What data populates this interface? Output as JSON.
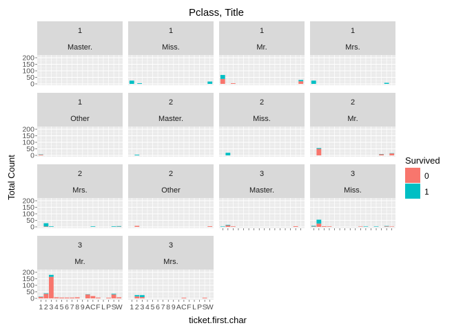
{
  "chart_data": {
    "type": "bar",
    "stacked": true,
    "faceted": true,
    "title": "Pclass, Title",
    "xlabel": "ticket.first.char",
    "ylabel": "Total Count",
    "categories": [
      "1",
      "2",
      "3",
      "4",
      "5",
      "6",
      "7",
      "8",
      "9",
      "A",
      "C",
      "F",
      "L",
      "P",
      "S",
      "W"
    ],
    "x_tick_labels": "123456789ACFLPSW",
    "y_ticks": [
      0,
      50,
      100,
      150,
      200
    ],
    "ylim": [
      0,
      200
    ],
    "legend": {
      "title": "Survived",
      "placement": "right",
      "entries": [
        {
          "label": "0",
          "color": "#F8766D"
        },
        {
          "label": "1",
          "color": "#00BFC4"
        }
      ]
    },
    "series_colors": {
      "0": "#F8766D",
      "1": "#00BFC4"
    },
    "panels": [
      {
        "pclass": "1",
        "title": "Master.",
        "survived_0": [
          0,
          0,
          0,
          0,
          0,
          0,
          0,
          0,
          0,
          0,
          0,
          0,
          0,
          0,
          0,
          0
        ],
        "survived_1": [
          0,
          0,
          0,
          0,
          0,
          0,
          0,
          0,
          0,
          0,
          0,
          0,
          0,
          0,
          0,
          0
        ]
      },
      {
        "pclass": "1",
        "title": "Miss.",
        "survived_0": [
          0,
          0,
          0,
          0,
          0,
          0,
          0,
          0,
          0,
          0,
          0,
          0,
          0,
          0,
          0,
          0
        ],
        "survived_1": [
          25,
          0,
          0,
          0,
          0,
          0,
          0,
          0,
          0,
          0,
          0,
          0,
          0,
          0,
          0,
          0
        ],
        "extra": [
          {
            "idx": 1.5,
            "s0": 0,
            "s1": 5
          },
          {
            "idx": 15,
            "s0": 0,
            "s1": 18
          }
        ]
      },
      {
        "pclass": "1",
        "title": "Mr.",
        "survived_0": [
          38,
          0,
          0,
          0,
          0,
          0,
          0,
          0,
          0,
          0,
          0,
          0,
          0,
          0,
          0,
          0
        ],
        "survived_1": [
          30,
          0,
          0,
          0,
          0,
          0,
          0,
          0,
          0,
          0,
          0,
          0,
          0,
          0,
          0,
          0
        ],
        "extra": [
          {
            "idx": 2,
            "s0": 5,
            "s1": 0
          },
          {
            "idx": 15,
            "s0": 20,
            "s1": 10
          }
        ]
      },
      {
        "pclass": "1",
        "title": "Mrs.",
        "survived_0": [
          0,
          0,
          0,
          0,
          0,
          0,
          0,
          0,
          0,
          0,
          0,
          0,
          0,
          0,
          0,
          0
        ],
        "survived_1": [
          25,
          0,
          0,
          0,
          0,
          0,
          0,
          0,
          0,
          0,
          0,
          0,
          0,
          0,
          0,
          0
        ],
        "extra": [
          {
            "idx": 14,
            "s0": 0,
            "s1": 8
          }
        ]
      },
      {
        "pclass": "1",
        "title": "Other",
        "survived_0": [
          5,
          0,
          0,
          0,
          0,
          0,
          0,
          0,
          0,
          0,
          0,
          0,
          0,
          0,
          0,
          0
        ],
        "survived_1": [
          2,
          0,
          0,
          0,
          0,
          0,
          0,
          0,
          0,
          0,
          0,
          0,
          0,
          0,
          0,
          0
        ]
      },
      {
        "pclass": "2",
        "title": "Master.",
        "survived_0": [
          0,
          0,
          0,
          0,
          0,
          0,
          0,
          0,
          0,
          0,
          0,
          0,
          0,
          0,
          0,
          0
        ],
        "survived_1": [
          0,
          5,
          0,
          0,
          0,
          0,
          0,
          0,
          0,
          0,
          0,
          0,
          0,
          0,
          0,
          0
        ]
      },
      {
        "pclass": "2",
        "title": "Miss.",
        "survived_0": [
          0,
          0,
          0,
          0,
          0,
          0,
          0,
          0,
          0,
          0,
          0,
          0,
          0,
          0,
          0,
          0
        ],
        "survived_1": [
          0,
          20,
          0,
          0,
          0,
          0,
          0,
          0,
          0,
          0,
          0,
          0,
          0,
          0,
          0,
          0
        ]
      },
      {
        "pclass": "2",
        "title": "Mr.",
        "survived_0": [
          0,
          50,
          0,
          0,
          0,
          0,
          0,
          0,
          0,
          0,
          0,
          0,
          0,
          8,
          0,
          15
        ],
        "survived_1": [
          0,
          6,
          0,
          0,
          0,
          0,
          0,
          0,
          0,
          0,
          0,
          0,
          0,
          2,
          0,
          2
        ]
      },
      {
        "pclass": "2",
        "title": "Mrs.",
        "survived_0": [
          0,
          3,
          0,
          0,
          0,
          0,
          0,
          0,
          0,
          0,
          0,
          0,
          0,
          0,
          0,
          2
        ],
        "survived_1": [
          0,
          25,
          4,
          0,
          0,
          0,
          0,
          0,
          0,
          0,
          4,
          0,
          0,
          0,
          4,
          4
        ]
      },
      {
        "pclass": "2",
        "title": "Other",
        "survived_0": [
          0,
          8,
          0,
          0,
          0,
          0,
          0,
          0,
          0,
          0,
          0,
          0,
          0,
          0,
          0,
          5
        ],
        "survived_1": [
          0,
          0,
          0,
          0,
          0,
          0,
          0,
          0,
          0,
          0,
          0,
          0,
          0,
          0,
          0,
          0
        ]
      },
      {
        "pclass": "3",
        "title": "Master.",
        "survived_0": [
          0,
          12,
          4,
          0,
          0,
          0,
          0,
          0,
          0,
          0,
          0,
          0,
          0,
          0,
          5,
          0
        ],
        "survived_1": [
          3,
          4,
          0,
          0,
          0,
          0,
          0,
          0,
          0,
          0,
          0,
          0,
          0,
          0,
          0,
          0
        ]
      },
      {
        "pclass": "3",
        "title": "Miss.",
        "survived_0": [
          3,
          25,
          5,
          4,
          0,
          0,
          0,
          0,
          0,
          3,
          0,
          0,
          0,
          0,
          4,
          3
        ],
        "survived_1": [
          5,
          30,
          0,
          0,
          0,
          0,
          0,
          0,
          0,
          0,
          3,
          0,
          3,
          0,
          3,
          0
        ]
      },
      {
        "pclass": "3",
        "title": "Mr.",
        "survived_0": [
          12,
          35,
          165,
          8,
          6,
          6,
          6,
          8,
          0,
          30,
          18,
          6,
          0,
          5,
          30,
          8
        ],
        "survived_1": [
          2,
          4,
          15,
          0,
          0,
          0,
          0,
          0,
          0,
          2,
          0,
          0,
          0,
          0,
          5,
          0
        ]
      },
      {
        "pclass": "3",
        "title": "Mrs.",
        "survived_0": [
          0,
          15,
          10,
          0,
          0,
          0,
          0,
          0,
          0,
          0,
          5,
          0,
          0,
          0,
          5,
          0
        ],
        "survived_1": [
          0,
          10,
          15,
          0,
          0,
          0,
          0,
          0,
          0,
          0,
          0,
          0,
          0,
          0,
          0,
          0
        ]
      }
    ]
  }
}
